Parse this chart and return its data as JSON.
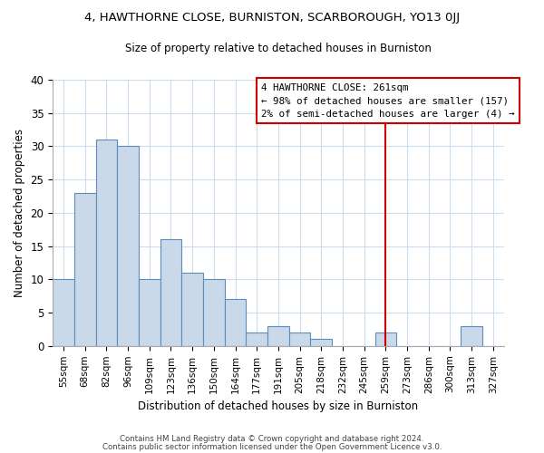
{
  "title": "4, HAWTHORNE CLOSE, BURNISTON, SCARBOROUGH, YO13 0JJ",
  "subtitle": "Size of property relative to detached houses in Burniston",
  "xlabel": "Distribution of detached houses by size in Burniston",
  "ylabel": "Number of detached properties",
  "bar_labels": [
    "55sqm",
    "68sqm",
    "82sqm",
    "96sqm",
    "109sqm",
    "123sqm",
    "136sqm",
    "150sqm",
    "164sqm",
    "177sqm",
    "191sqm",
    "205sqm",
    "218sqm",
    "232sqm",
    "245sqm",
    "259sqm",
    "273sqm",
    "286sqm",
    "300sqm",
    "313sqm",
    "327sqm"
  ],
  "bar_heights": [
    10,
    23,
    31,
    30,
    10,
    16,
    11,
    10,
    7,
    2,
    3,
    2,
    1,
    0,
    0,
    2,
    0,
    0,
    0,
    3,
    0
  ],
  "bar_color": "#c9d9ea",
  "bar_edge_color": "#5b8db8",
  "vline_x": 15,
  "vline_color": "#cc0000",
  "annotation_title": "4 HAWTHORNE CLOSE: 261sqm",
  "annotation_line1": "← 98% of detached houses are smaller (157)",
  "annotation_line2": "2% of semi-detached houses are larger (4) →",
  "annotation_box_color": "#ffffff",
  "annotation_box_edge": "#cc0000",
  "ylim": [
    0,
    40
  ],
  "yticks": [
    0,
    5,
    10,
    15,
    20,
    25,
    30,
    35,
    40
  ],
  "footer1": "Contains HM Land Registry data © Crown copyright and database right 2024.",
  "footer2": "Contains public sector information licensed under the Open Government Licence v3.0.",
  "background_color": "#ffffff",
  "grid_color": "#ccddee"
}
